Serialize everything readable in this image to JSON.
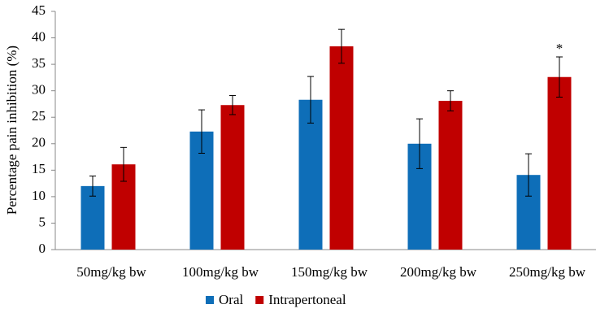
{
  "chart_data": {
    "type": "bar",
    "y_label": "Percentage pain inhibition (%)",
    "categories": [
      "50mg/kg bw",
      "100mg/kg bw",
      "150mg/kg bw",
      "200mg/kg bw",
      "250mg/kg bw"
    ],
    "series": [
      {
        "name": "Oral",
        "color": "#0e6eb8",
        "values": [
          12.0,
          22.3,
          28.3,
          20.0,
          14.1
        ],
        "errors": [
          1.9,
          4.1,
          4.4,
          4.7,
          4.0
        ]
      },
      {
        "name": "Intrapertoneal",
        "color": "#c00000",
        "values": [
          16.1,
          27.3,
          38.4,
          28.1,
          32.6
        ],
        "errors": [
          3.2,
          1.8,
          3.2,
          1.9,
          3.8
        ]
      }
    ],
    "annotation": "*",
    "ylim": [
      0,
      45
    ],
    "yticks": [
      0,
      5,
      10,
      15,
      20,
      25,
      30,
      35,
      40,
      45
    ],
    "grid": false,
    "legend": "bottom"
  }
}
